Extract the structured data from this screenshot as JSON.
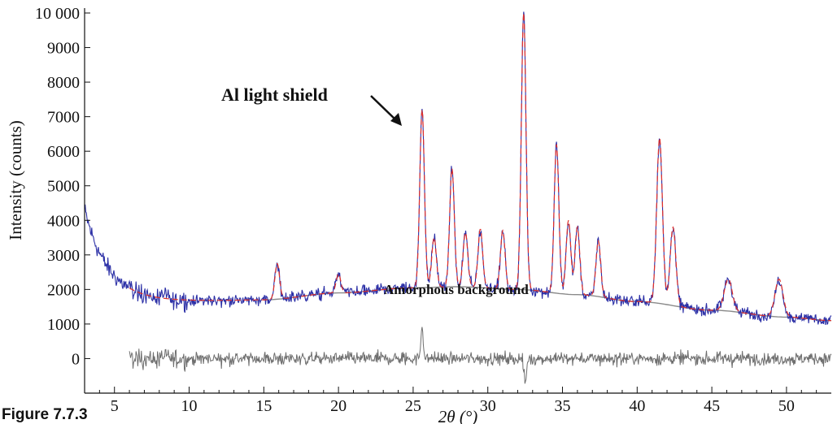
{
  "chart_data": {
    "type": "line",
    "title": "",
    "xlabel": "2θ (°)",
    "ylabel": "Intensity (counts)",
    "xlim": [
      3,
      53
    ],
    "ylim": [
      -1000,
      10000
    ],
    "x_ticks": [
      5,
      10,
      15,
      20,
      25,
      30,
      35,
      40,
      45,
      50
    ],
    "x_tick_labels": [
      "5",
      "10",
      "15",
      "20",
      "25",
      "30",
      "35",
      "40",
      "45",
      "50"
    ],
    "y_ticks": [
      0,
      1000,
      2000,
      3000,
      4000,
      5000,
      6000,
      7000,
      8000,
      9000,
      10000
    ],
    "y_tick_labels": [
      "0",
      "1000",
      "2000",
      "3000",
      "4000",
      "5000",
      "6000",
      "7000",
      "8000",
      "9000",
      "10 000"
    ],
    "grid": false,
    "legend": "none",
    "colors": {
      "observed": "#2b2fa6",
      "calculated": "#e0302a",
      "background": "#8a8a8a",
      "difference": "#6e6e6e",
      "axes": "#111111"
    },
    "background_curve": {
      "x": [
        15,
        20,
        25,
        28,
        32,
        36,
        40,
        45,
        50,
        53
      ],
      "y": [
        1700,
        1900,
        2050,
        2080,
        2000,
        1850,
        1650,
        1400,
        1200,
        1100
      ]
    },
    "peaks": [
      {
        "x": 15.9,
        "y": 2750
      },
      {
        "x": 20.0,
        "y": 2450
      },
      {
        "x": 25.6,
        "y": 7200
      },
      {
        "x": 26.4,
        "y": 3500
      },
      {
        "x": 27.6,
        "y": 5500
      },
      {
        "x": 28.5,
        "y": 3650
      },
      {
        "x": 29.5,
        "y": 3750
      },
      {
        "x": 31.0,
        "y": 3700
      },
      {
        "x": 32.4,
        "y": 10000
      },
      {
        "x": 34.6,
        "y": 6200
      },
      {
        "x": 35.4,
        "y": 4000
      },
      {
        "x": 36.0,
        "y": 3800
      },
      {
        "x": 37.4,
        "y": 3400
      },
      {
        "x": 41.5,
        "y": 6400
      },
      {
        "x": 42.4,
        "y": 3800
      },
      {
        "x": 46.1,
        "y": 2300
      },
      {
        "x": 49.5,
        "y": 2300
      }
    ],
    "series": [
      {
        "name": "",
        "role": "observed"
      },
      {
        "name": "",
        "role": "calculated"
      },
      {
        "name": "",
        "role": "difference"
      }
    ],
    "annotations": [
      {
        "text": "Al light shield",
        "x": 25.2,
        "y": 6800
      },
      {
        "text": "Amorphous background",
        "x": 31.2,
        "y": 1600
      }
    ]
  },
  "caption": "Figure 7.7.3"
}
